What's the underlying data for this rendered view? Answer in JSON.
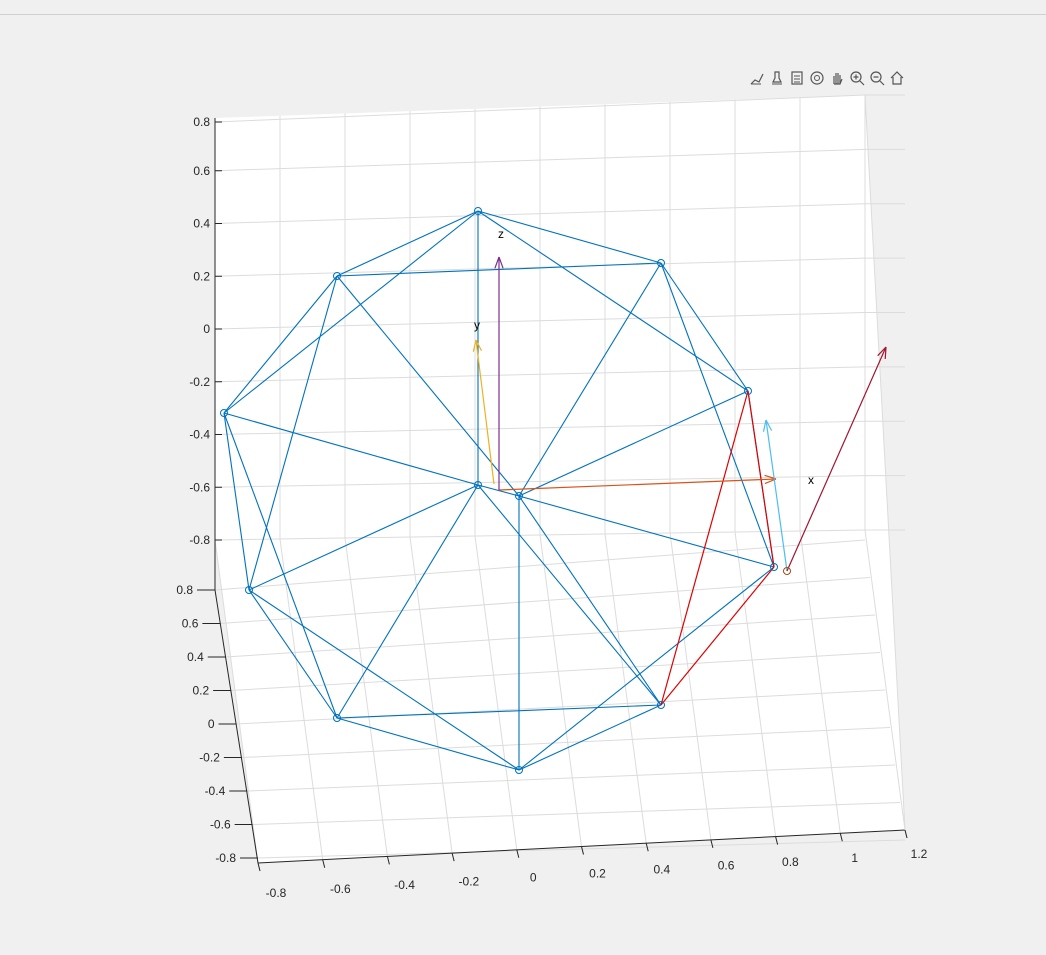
{
  "toolbar": {
    "buttons": [
      {
        "name": "brush-icon",
        "title": ""
      },
      {
        "name": "data-tips-icon",
        "title": ""
      },
      {
        "name": "legend-icon",
        "title": ""
      },
      {
        "name": "rotate-3d-icon",
        "title": ""
      },
      {
        "name": "pan-icon",
        "title": ""
      },
      {
        "name": "zoom-in-icon",
        "title": ""
      },
      {
        "name": "zoom-out-icon",
        "title": ""
      },
      {
        "name": "home-icon",
        "title": ""
      }
    ]
  },
  "colors": {
    "mesh": "#0072bd",
    "red_edges": "#e00000",
    "x_arrow": "#d95319",
    "y_arrow": "#edb120",
    "z_arrow": "#7e2f8e",
    "cyan_arrow": "#4dbeee",
    "maroon_arrow": "#a2142f",
    "marker_olive": "#77ac30",
    "grid": "#dcdcdc",
    "axis": "#262626",
    "background": "#ffffff"
  },
  "chart_data": {
    "type": "scatter",
    "projection": "3d",
    "description_axes": {
      "x_ticks": [
        "-0.8",
        "-0.6",
        "-0.4",
        "-0.2",
        "0",
        "0.2",
        "0.4",
        "0.6",
        "0.8",
        "1",
        "1.2"
      ],
      "y_ticks": [
        "0.8",
        "0.6",
        "0.4",
        "0.2",
        "0",
        "-0.2",
        "-0.4",
        "-0.6",
        "-0.8"
      ],
      "z_ticks": [
        "0.8",
        "0.6",
        "0.4",
        "0.2",
        "0",
        "-0.2",
        "-0.4",
        "-0.6",
        "-0.8"
      ]
    },
    "grid": true,
    "vertices": [
      {
        "id": 0,
        "x": -0.2,
        "y": 0.0,
        "z": 0.85,
        "label": ""
      },
      {
        "id": 1,
        "x": -0.6,
        "y": 0.3,
        "z": 0.6,
        "label": ""
      },
      {
        "id": 2,
        "x": 0.45,
        "y": 0.35,
        "z": 0.55,
        "label": ""
      },
      {
        "id": 3,
        "x": -0.85,
        "y": 0.0,
        "z": 0.1,
        "label": ""
      },
      {
        "id": 4,
        "x": 0.7,
        "y": 0.05,
        "z": 0.0,
        "label": ""
      },
      {
        "id": 5,
        "x": -0.2,
        "y": 0.0,
        "z": 0.0,
        "label": ""
      },
      {
        "id": 6,
        "x": 0.0,
        "y": 0.0,
        "z": -0.05,
        "label": ""
      },
      {
        "id": 7,
        "x": 0.8,
        "y": -0.3,
        "z": -0.2,
        "label": ""
      },
      {
        "id": 8,
        "x": -0.8,
        "y": -0.3,
        "z": -0.4,
        "label": ""
      },
      {
        "id": 9,
        "x": -0.6,
        "y": -0.6,
        "z": -0.8,
        "label": ""
      },
      {
        "id": 10,
        "x": 0.45,
        "y": -0.5,
        "z": -0.85,
        "label": ""
      },
      {
        "id": 11,
        "x": 0.0,
        "y": -0.85,
        "z": -0.8,
        "label": ""
      }
    ],
    "edges_blue": [
      [
        0,
        1
      ],
      [
        0,
        2
      ],
      [
        0,
        5
      ],
      [
        0,
        3
      ],
      [
        0,
        4
      ],
      [
        1,
        2
      ],
      [
        1,
        3
      ],
      [
        1,
        8
      ],
      [
        1,
        6
      ],
      [
        2,
        4
      ],
      [
        2,
        6
      ],
      [
        2,
        7
      ],
      [
        3,
        5
      ],
      [
        3,
        8
      ],
      [
        3,
        9
      ],
      [
        4,
        6
      ],
      [
        4,
        7
      ],
      [
        5,
        6
      ],
      [
        5,
        8
      ],
      [
        5,
        9
      ],
      [
        5,
        10
      ],
      [
        6,
        11
      ],
      [
        6,
        7
      ],
      [
        6,
        10
      ],
      [
        8,
        9
      ],
      [
        8,
        11
      ],
      [
        9,
        10
      ],
      [
        9,
        11
      ],
      [
        10,
        11
      ],
      [
        11,
        7
      ]
    ],
    "edges_red": [
      [
        4,
        7
      ],
      [
        4,
        10
      ],
      [
        7,
        10
      ]
    ],
    "arrows": [
      {
        "name": "x",
        "label": "x",
        "color": "#d95319"
      },
      {
        "name": "y",
        "label": "y",
        "color": "#edb120"
      },
      {
        "name": "z",
        "label": "z",
        "color": "#7e2f8e"
      },
      {
        "name": "cyan",
        "label": "",
        "color": "#4dbeee"
      },
      {
        "name": "maroon",
        "label": "",
        "color": "#a2142f"
      }
    ]
  }
}
